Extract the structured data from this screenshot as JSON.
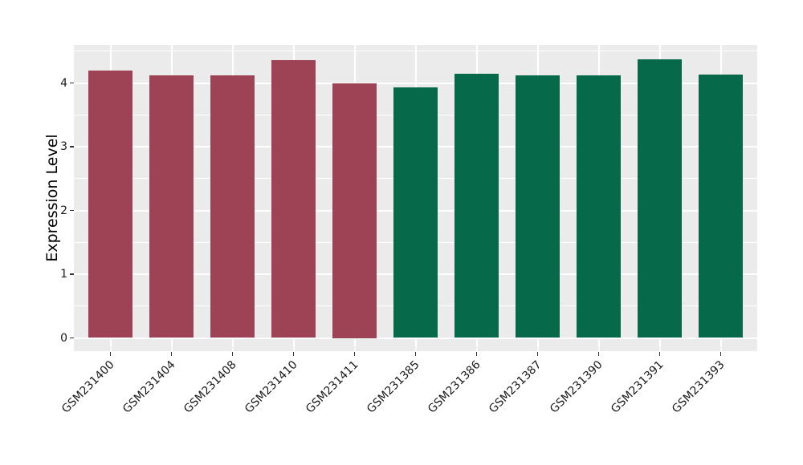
{
  "chart_data": {
    "type": "bar",
    "title": "",
    "xlabel": "",
    "ylabel": "Expression Level",
    "categories": [
      "GSM231400",
      "GSM231404",
      "GSM231408",
      "GSM231410",
      "GSM231411",
      "GSM231385",
      "GSM231386",
      "GSM231387",
      "GSM231390",
      "GSM231391",
      "GSM231393"
    ],
    "values": [
      4.19,
      4.12,
      4.12,
      4.36,
      4.0,
      3.93,
      4.14,
      4.12,
      4.12,
      4.37,
      4.13
    ],
    "bar_colors": [
      "#9E4355",
      "#9E4355",
      "#9E4355",
      "#9E4355",
      "#9E4355",
      "#066A4A",
      "#066A4A",
      "#066A4A",
      "#066A4A",
      "#066A4A",
      "#066A4A"
    ],
    "group_colors": {
      "left_group": "#9E4355",
      "right_group": "#066A4A"
    },
    "yticks": [
      0,
      1,
      2,
      3,
      4
    ],
    "minor_yticks": [
      0.5,
      1.5,
      2.5,
      3.5,
      4.5
    ],
    "ylim": [
      0,
      4.6
    ],
    "x_tick_angle": -45,
    "grid": true,
    "legend": "none",
    "panel_background": "#EBEBEB",
    "gridline_color": "#FFFFFF",
    "tick_label_color": "#1a1a1a",
    "axis_title_color": "#000000"
  }
}
